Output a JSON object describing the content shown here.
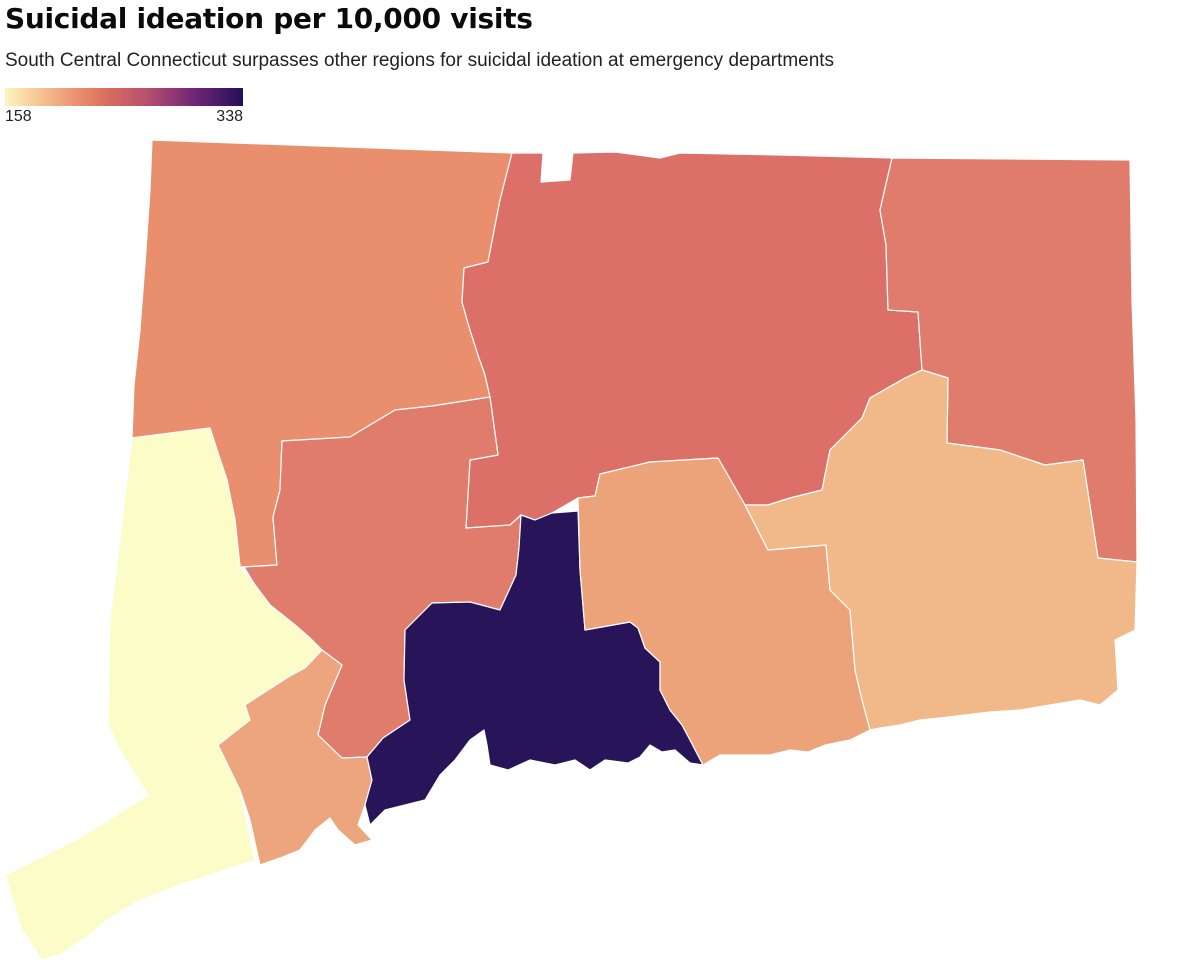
{
  "title": "Suicidal ideation per 10,000 visits",
  "subtitle": "South Central Connecticut surpasses other regions for suicidal ideation at emergency departments",
  "legend": {
    "min_label": "158",
    "max_label": "338",
    "min_value": 158,
    "max_value": 338
  },
  "colors": {
    "scale": [
      "#fcf5c0",
      "#f3b183",
      "#e0735f",
      "#b64f6e",
      "#6e2575",
      "#23105a"
    ],
    "highlight": "#23105a"
  },
  "map_data": {
    "type": "choropleth",
    "geography": "Connecticut planning regions",
    "regions": [
      {
        "id": "northwest",
        "fill": "#e98f6d"
      },
      {
        "id": "capitol",
        "fill": "#dc6f68"
      },
      {
        "id": "northeast",
        "fill": "#e07c6c"
      },
      {
        "id": "naugatuck-valley",
        "fill": "#e07c6c"
      },
      {
        "id": "western",
        "fill": "#fcfcc8"
      },
      {
        "id": "greater-bridgeport",
        "fill": "#eca57c"
      },
      {
        "id": "south-central",
        "fill": "#281459"
      },
      {
        "id": "lower-ct-river-valley",
        "fill": "#eda37a"
      },
      {
        "id": "southeastern",
        "fill": "#f1b989"
      }
    ]
  }
}
